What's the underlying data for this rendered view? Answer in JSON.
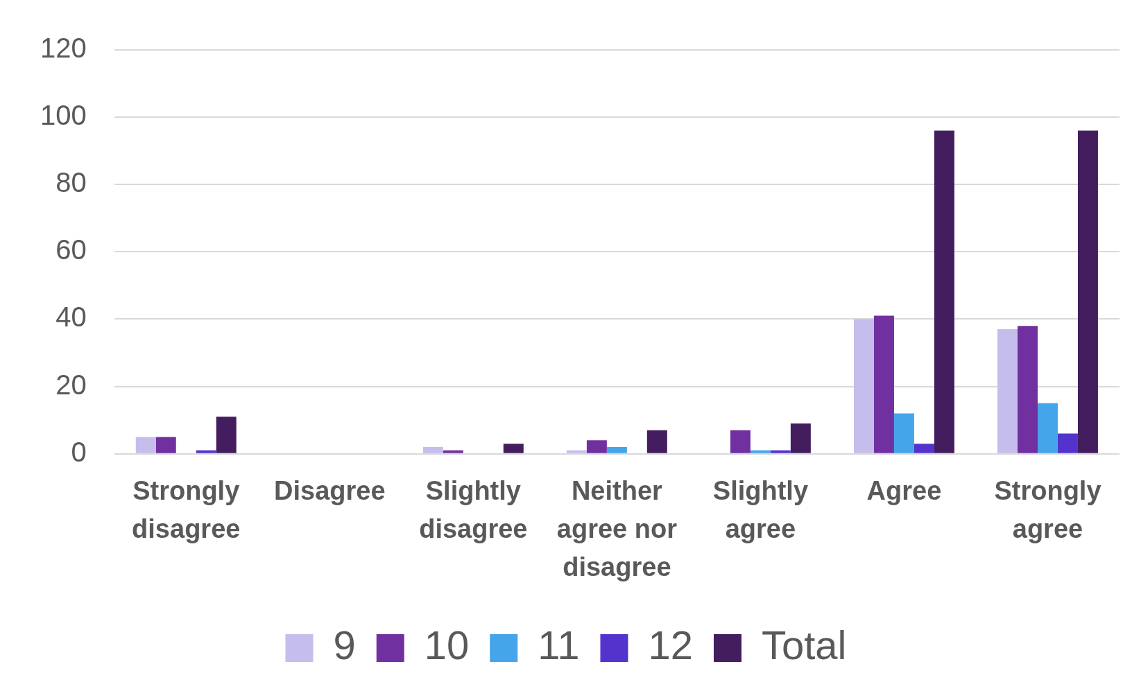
{
  "chart_data": {
    "type": "bar",
    "categories": [
      "Strongly disagree",
      "Disagree",
      "Slightly disagree",
      "Neither agree nor disagree",
      "Slightly agree",
      "Agree",
      "Strongly agree"
    ],
    "series": [
      {
        "name": "9",
        "color": "#c5bdeb",
        "values": [
          5,
          0,
          2,
          1,
          0,
          40,
          37
        ]
      },
      {
        "name": "10",
        "color": "#7030a0",
        "values": [
          5,
          0,
          1,
          4,
          7,
          41,
          38
        ]
      },
      {
        "name": "11",
        "color": "#45a5ea",
        "values": [
          0,
          0,
          0,
          2,
          1,
          12,
          15
        ]
      },
      {
        "name": "12",
        "color": "#5433cc",
        "values": [
          1,
          0,
          0,
          0,
          1,
          3,
          6
        ]
      },
      {
        "name": "Total",
        "color": "#431d5e",
        "values": [
          11,
          0,
          3,
          7,
          9,
          96,
          96
        ]
      }
    ],
    "ylim": [
      0,
      120
    ],
    "yticks": [
      0,
      20,
      40,
      60,
      80,
      100,
      120
    ],
    "grid": "y",
    "legend": "bottom"
  }
}
